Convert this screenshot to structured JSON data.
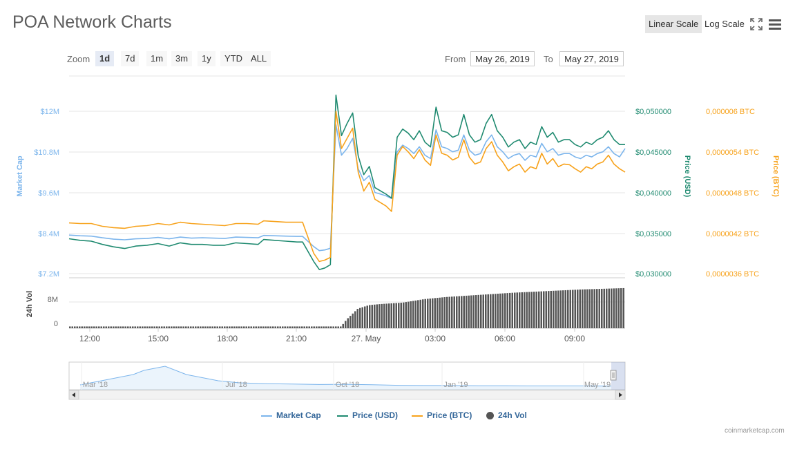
{
  "title": "POA Network Charts",
  "controls": {
    "linear_scale": "Linear Scale",
    "log_scale": "Log Scale",
    "zoom_label": "Zoom",
    "zoom_buttons": [
      "1d",
      "7d",
      "1m",
      "3m",
      "1y",
      "YTD",
      "ALL"
    ],
    "zoom_active": "1d",
    "from_label": "From",
    "from_value": "May 26, 2019",
    "to_label": "To",
    "to_value": "May 27, 2019"
  },
  "credit": "coinmarketcap.com",
  "colors": {
    "market_cap": "#7cb5ec",
    "price_usd": "#1f8a70",
    "price_btc": "#f7a21b",
    "volume": "#555555"
  },
  "chart_data": {
    "type": "line",
    "x_labels": [
      "12:00",
      "15:00",
      "18:00",
      "21:00",
      "27. May",
      "03:00",
      "06:00",
      "09:00"
    ],
    "axes": {
      "market_cap": {
        "label": "Market Cap",
        "ticks": [
          "$12M",
          "$10.8M",
          "$9.6M",
          "$8.4M",
          "$7.2M"
        ],
        "range": [
          7.2,
          12
        ]
      },
      "price_usd": {
        "label": "Price (USD)",
        "ticks": [
          "$0,050000",
          "$0,045000",
          "$0,040000",
          "$0,035000",
          "$0,030000"
        ],
        "range": [
          0.03,
          0.05
        ]
      },
      "price_btc": {
        "label": "Price (BTC)",
        "ticks": [
          "0,000006 BTC",
          "0,0000054 BTC",
          "0,0000048 BTC",
          "0,0000042 BTC",
          "0,0000036 BTC"
        ],
        "range": [
          3.6e-06,
          6e-06
        ]
      },
      "volume": {
        "label": "24h Vol",
        "ticks": [
          "8M",
          "0"
        ],
        "range": [
          0,
          14
        ]
      }
    },
    "series": [
      {
        "name": "Market Cap",
        "axis": "market_cap",
        "x": [
          0,
          0.02,
          0.04,
          0.06,
          0.08,
          0.1,
          0.12,
          0.14,
          0.16,
          0.18,
          0.2,
          0.22,
          0.24,
          0.26,
          0.28,
          0.3,
          0.32,
          0.34,
          0.35,
          0.37,
          0.39,
          0.41,
          0.42,
          0.44,
          0.45,
          0.46,
          0.47,
          0.48,
          0.49,
          0.5,
          0.51,
          0.52,
          0.53,
          0.54,
          0.55,
          0.56,
          0.57,
          0.58,
          0.59,
          0.6,
          0.61,
          0.62,
          0.63,
          0.64,
          0.65,
          0.66,
          0.67,
          0.68,
          0.69,
          0.7,
          0.71,
          0.72,
          0.73,
          0.74,
          0.75,
          0.76,
          0.77,
          0.78,
          0.79,
          0.8,
          0.81,
          0.82,
          0.83,
          0.84,
          0.85,
          0.86,
          0.87,
          0.88,
          0.89,
          0.9,
          0.91,
          0.92,
          0.93,
          0.94,
          0.95,
          0.96,
          0.97,
          0.98,
          0.99,
          1
        ],
        "values": [
          8.34,
          8.32,
          8.31,
          8.26,
          8.22,
          8.2,
          8.23,
          8.24,
          8.27,
          8.23,
          8.28,
          8.25,
          8.26,
          8.25,
          8.24,
          8.28,
          8.27,
          8.26,
          8.33,
          8.32,
          8.31,
          8.3,
          8.3,
          8.0,
          7.88,
          7.9,
          7.95,
          11.6,
          10.7,
          10.9,
          11.2,
          10.3,
          9.95,
          10.1,
          9.6,
          9.55,
          9.5,
          9.42,
          10.8,
          11.0,
          10.9,
          10.75,
          10.95,
          10.7,
          10.6,
          11.45,
          10.95,
          10.9,
          10.8,
          10.85,
          11.3,
          10.85,
          10.7,
          10.75,
          11.1,
          11.3,
          10.95,
          10.8,
          10.6,
          10.7,
          10.75,
          10.55,
          10.7,
          10.65,
          11.05,
          10.8,
          10.9,
          10.7,
          10.75,
          10.75,
          10.65,
          10.6,
          10.7,
          10.65,
          10.75,
          10.8,
          10.95,
          10.75,
          10.65,
          10.9
        ]
      },
      {
        "name": "Price (USD)",
        "axis": "price_usd",
        "x": [
          0,
          0.02,
          0.04,
          0.06,
          0.08,
          0.1,
          0.12,
          0.14,
          0.16,
          0.18,
          0.2,
          0.22,
          0.24,
          0.26,
          0.28,
          0.3,
          0.32,
          0.34,
          0.35,
          0.37,
          0.39,
          0.41,
          0.42,
          0.44,
          0.45,
          0.46,
          0.47,
          0.48,
          0.49,
          0.5,
          0.51,
          0.52,
          0.53,
          0.54,
          0.55,
          0.56,
          0.57,
          0.58,
          0.59,
          0.6,
          0.61,
          0.62,
          0.63,
          0.64,
          0.65,
          0.66,
          0.67,
          0.68,
          0.69,
          0.7,
          0.71,
          0.72,
          0.73,
          0.74,
          0.75,
          0.76,
          0.77,
          0.78,
          0.79,
          0.8,
          0.81,
          0.82,
          0.83,
          0.84,
          0.85,
          0.86,
          0.87,
          0.88,
          0.89,
          0.9,
          0.91,
          0.92,
          0.93,
          0.94,
          0.95,
          0.96,
          0.97,
          0.98,
          0.99,
          1
        ],
        "values": [
          0.0343,
          0.0341,
          0.034,
          0.0336,
          0.0333,
          0.0331,
          0.0334,
          0.0335,
          0.0337,
          0.0334,
          0.0338,
          0.0336,
          0.0336,
          0.0335,
          0.0335,
          0.0338,
          0.0337,
          0.0336,
          0.0342,
          0.0341,
          0.034,
          0.0339,
          0.0339,
          0.0315,
          0.0305,
          0.0307,
          0.0311,
          0.052,
          0.047,
          0.0485,
          0.0498,
          0.0445,
          0.0422,
          0.0432,
          0.0406,
          0.0402,
          0.0398,
          0.0393,
          0.0468,
          0.0478,
          0.0473,
          0.0465,
          0.0476,
          0.0462,
          0.0456,
          0.0505,
          0.0476,
          0.0474,
          0.0468,
          0.0471,
          0.0496,
          0.0471,
          0.0462,
          0.0465,
          0.0485,
          0.0496,
          0.0476,
          0.0468,
          0.0456,
          0.0462,
          0.0465,
          0.0454,
          0.0462,
          0.0459,
          0.0481,
          0.0468,
          0.0474,
          0.0462,
          0.0465,
          0.0465,
          0.0459,
          0.0456,
          0.0462,
          0.0459,
          0.0465,
          0.0468,
          0.0476,
          0.0465,
          0.0459,
          0.0459
        ]
      },
      {
        "name": "Price (BTC)",
        "axis": "price_btc",
        "x": [
          0,
          0.02,
          0.04,
          0.06,
          0.08,
          0.1,
          0.12,
          0.14,
          0.16,
          0.18,
          0.2,
          0.22,
          0.24,
          0.26,
          0.28,
          0.3,
          0.32,
          0.34,
          0.35,
          0.37,
          0.39,
          0.41,
          0.42,
          0.44,
          0.45,
          0.46,
          0.47,
          0.48,
          0.49,
          0.5,
          0.51,
          0.52,
          0.53,
          0.54,
          0.55,
          0.56,
          0.57,
          0.58,
          0.59,
          0.6,
          0.61,
          0.62,
          0.63,
          0.64,
          0.65,
          0.66,
          0.67,
          0.68,
          0.69,
          0.7,
          0.71,
          0.72,
          0.73,
          0.74,
          0.75,
          0.76,
          0.77,
          0.78,
          0.79,
          0.8,
          0.81,
          0.82,
          0.83,
          0.84,
          0.85,
          0.86,
          0.87,
          0.88,
          0.89,
          0.9,
          0.91,
          0.92,
          0.93,
          0.94,
          0.95,
          0.96,
          0.97,
          0.98,
          0.99,
          1
        ],
        "values": [
          4.35e-06,
          4.34e-06,
          4.34e-06,
          4.3e-06,
          4.28e-06,
          4.27e-06,
          4.3e-06,
          4.31e-06,
          4.34e-06,
          4.32e-06,
          4.36e-06,
          4.34e-06,
          4.33e-06,
          4.32e-06,
          4.31e-06,
          4.34e-06,
          4.34e-06,
          4.33e-06,
          4.38e-06,
          4.37e-06,
          4.36e-06,
          4.36e-06,
          4.36e-06,
          3.9e-06,
          3.78e-06,
          3.8e-06,
          3.84e-06,
          6e-06,
          5.45e-06,
          5.6e-06,
          5.75e-06,
          5.1e-06,
          4.82e-06,
          4.95e-06,
          4.7e-06,
          4.65e-06,
          4.6e-06,
          4.52e-06,
          5.35e-06,
          5.48e-06,
          5.4e-06,
          5.3e-06,
          5.43e-06,
          5.28e-06,
          5.2e-06,
          5.65e-06,
          5.38e-06,
          5.35e-06,
          5.28e-06,
          5.32e-06,
          5.58e-06,
          5.32e-06,
          5.22e-06,
          5.25e-06,
          5.45e-06,
          5.55e-06,
          5.35e-06,
          5.25e-06,
          5.12e-06,
          5.18e-06,
          5.22e-06,
          5.1e-06,
          5.18e-06,
          5.15e-06,
          5.38e-06,
          5.22e-06,
          5.3e-06,
          5.18e-06,
          5.22e-06,
          5.21e-06,
          5.15e-06,
          5.1e-06,
          5.18e-06,
          5.15e-06,
          5.22e-06,
          5.25e-06,
          5.35e-06,
          5.22e-06,
          5.15e-06,
          5.1e-06
        ]
      },
      {
        "name": "24h Vol",
        "axis": "volume",
        "x": [
          0,
          0.05,
          0.1,
          0.15,
          0.2,
          0.25,
          0.3,
          0.35,
          0.4,
          0.45,
          0.49,
          0.5,
          0.52,
          0.54,
          0.56,
          0.6,
          0.64,
          0.68,
          0.72,
          0.76,
          0.8,
          0.84,
          0.88,
          0.92,
          0.96,
          1
        ],
        "values": [
          0.5,
          0.5,
          0.5,
          0.5,
          0.5,
          0.5,
          0.5,
          0.5,
          0.5,
          0.5,
          0.5,
          2.5,
          5.5,
          6.5,
          6.8,
          7.2,
          8.2,
          8.8,
          9.2,
          9.6,
          10.0,
          10.3,
          10.6,
          10.9,
          11.1,
          11.3
        ]
      }
    ],
    "navigator": {
      "labels": [
        "Mar '18",
        "Jul '18",
        "Oct '18",
        "Jan '19",
        "May '19"
      ],
      "x": [
        0,
        0.02,
        0.04,
        0.06,
        0.08,
        0.1,
        0.12,
        0.14,
        0.16,
        0.18,
        0.2,
        0.22,
        0.24,
        0.26,
        0.28,
        0.3,
        0.35,
        0.4,
        0.45,
        0.5,
        0.55,
        0.6,
        0.65,
        0.7,
        0.75,
        0.8,
        0.85,
        0.9,
        0.95,
        1
      ],
      "values": [
        1,
        2,
        3,
        4,
        5,
        6,
        8,
        9,
        10,
        8,
        6,
        5,
        4,
        3,
        2.5,
        2,
        1.6,
        1.4,
        1.2,
        1.3,
        1.1,
        0.8,
        0.7,
        0.7,
        0.6,
        0.6,
        0.5,
        0.5,
        0.5,
        0.4
      ]
    },
    "legend": [
      "Market Cap",
      "Price (USD)",
      "Price (BTC)",
      "24h Vol"
    ],
    "legend_position": "bottom"
  }
}
